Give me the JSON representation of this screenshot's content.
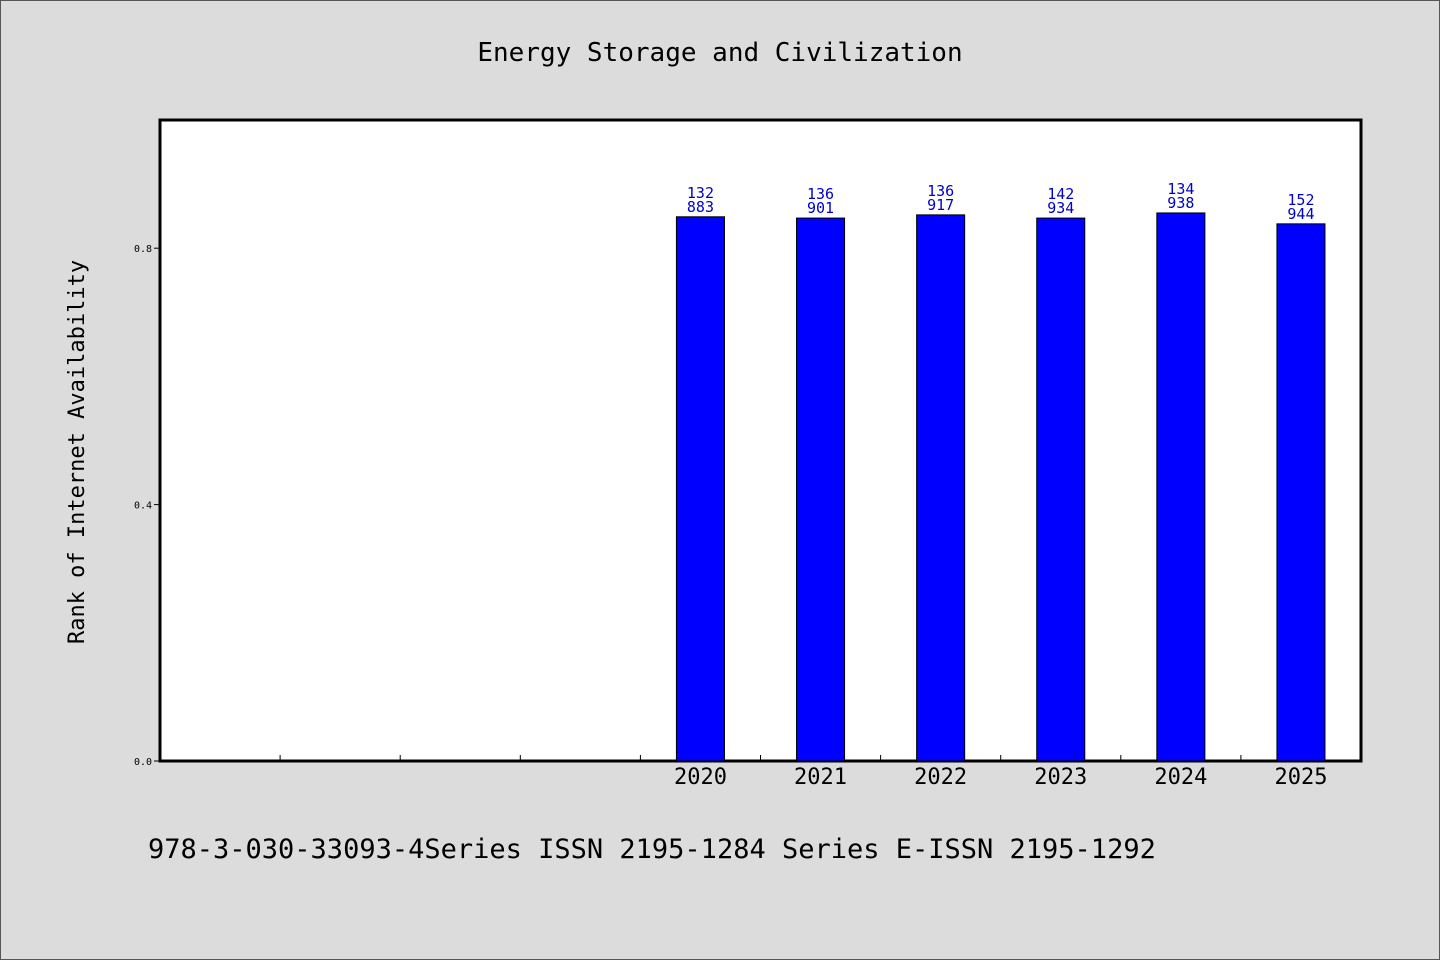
{
  "chart_data": {
    "type": "bar",
    "title": "Energy Storage and Civilization",
    "xlabel": "",
    "ylabel": "Rank of Internet Availability",
    "categories": [
      "2020",
      "2021",
      "2022",
      "2023",
      "2024",
      "2025"
    ],
    "series": [
      {
        "values": [
          0.849,
          0.847,
          0.852,
          0.847,
          0.855,
          0.838
        ],
        "labels": [
          [
            "132",
            "883"
          ],
          [
            "136",
            "901"
          ],
          [
            "136",
            "917"
          ],
          [
            "142",
            "934"
          ],
          [
            "134",
            "938"
          ],
          [
            "152",
            "944"
          ]
        ]
      }
    ],
    "ylim": [
      0.0,
      1.0
    ],
    "yticks": [
      "0.0",
      "0.4",
      "0.8"
    ],
    "ytick_values": [
      0.0,
      0.4,
      0.8
    ],
    "empty_slots_before": 4,
    "grid": false,
    "colors": {
      "bar": "#0000ff",
      "bar_edge": "#000000",
      "label": "#0000cc",
      "background": "#dcdcdc",
      "plot_bg": "#ffffff"
    }
  },
  "footer": "978-3-030-33093-4Series ISSN 2195-1284 Series E-ISSN 2195-1292"
}
